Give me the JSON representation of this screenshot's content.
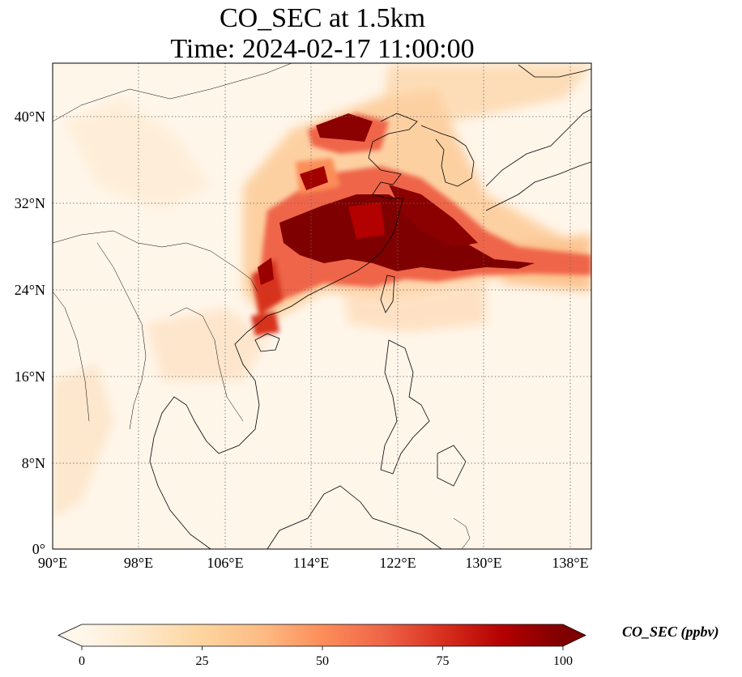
{
  "title": {
    "line1": "CO_SEC at 1.5km",
    "line2": "Time: 2024-02-17 11:00:00"
  },
  "map": {
    "variable": "CO_SEC",
    "level": "1.5km",
    "time": "2024-02-17 11:00:00",
    "extent": {
      "lon": [
        90,
        139
      ],
      "lat": [
        0,
        44
      ]
    },
    "lon_ticks": [
      "90°E",
      "98°E",
      "106°E",
      "114°E",
      "122°E",
      "130°E",
      "138°E"
    ],
    "lat_ticks": [
      "0°",
      "8°N",
      "16°N",
      "24°N",
      "32°N",
      "40°N"
    ],
    "gridlines": "dotted",
    "colormap": "OrRd",
    "plume_color": "#7f0000",
    "background_color": "#fff7ec"
  },
  "colorbar": {
    "label": "CO_SEC (ppbv)",
    "min": 0,
    "max": 100,
    "ticks": [
      "0",
      "25",
      "50",
      "75",
      "100"
    ],
    "extend": "both",
    "colors": [
      "#fff7ec",
      "#fee8c8",
      "#fdd49e",
      "#fdbb84",
      "#fc8d59",
      "#ef6548",
      "#d7301f",
      "#b30000",
      "#7f0000"
    ]
  }
}
